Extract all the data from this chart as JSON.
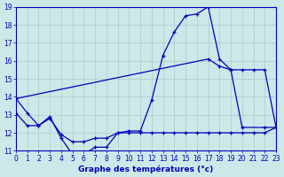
{
  "title": "Graphe des températures (°c)",
  "bg_color": "#cce8e8",
  "line_color": "#0000bb",
  "grid_color": "#aacccc",
  "xlim": [
    0,
    23
  ],
  "ylim": [
    11,
    19
  ],
  "yticks": [
    11,
    12,
    13,
    14,
    15,
    16,
    17,
    18,
    19
  ],
  "xticks": [
    0,
    1,
    2,
    3,
    4,
    5,
    6,
    7,
    8,
    9,
    10,
    11,
    12,
    13,
    14,
    15,
    16,
    17,
    18,
    19,
    20,
    21,
    22,
    23
  ],
  "curve1_x": [
    0,
    1,
    2,
    3,
    4,
    5,
    6,
    7,
    8,
    9,
    10,
    11,
    12,
    13,
    14,
    15,
    16,
    17,
    18,
    19,
    20,
    22,
    23
  ],
  "curve1_y": [
    13.9,
    13.1,
    12.4,
    12.9,
    11.7,
    10.8,
    10.8,
    11.2,
    11.2,
    12.0,
    12.1,
    12.1,
    13.8,
    16.3,
    17.6,
    18.5,
    18.6,
    19.0,
    16.1,
    15.5,
    12.3,
    12.3,
    12.3
  ],
  "curve2_x": [
    0,
    17,
    18,
    19,
    20,
    21,
    22,
    23
  ],
  "curve2_y": [
    13.9,
    16.1,
    15.7,
    15.5,
    15.5,
    15.5,
    15.5,
    12.3
  ],
  "curve3_x": [
    0,
    1,
    2,
    3,
    4,
    5,
    6,
    7,
    8,
    9,
    10,
    11,
    12,
    13,
    14,
    15,
    16,
    17,
    18,
    19,
    20,
    21,
    22,
    23
  ],
  "curve3_y": [
    13.1,
    12.4,
    12.4,
    12.8,
    11.9,
    11.5,
    11.5,
    11.7,
    11.7,
    12.0,
    12.0,
    12.0,
    12.0,
    12.0,
    12.0,
    12.0,
    12.0,
    12.0,
    12.0,
    12.0,
    12.0,
    12.0,
    12.0,
    12.3
  ]
}
